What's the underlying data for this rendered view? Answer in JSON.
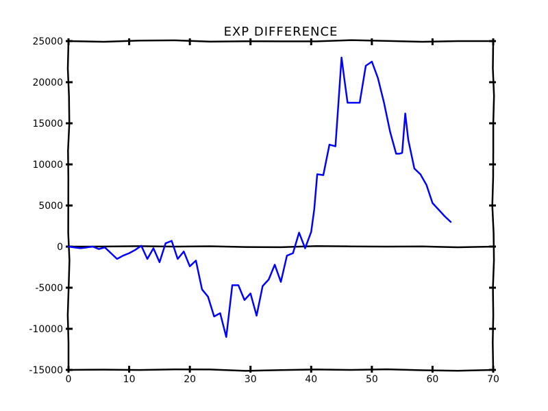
{
  "chart_data": {
    "type": "line",
    "title": "EXP DIFFERENCE",
    "xlabel": "",
    "ylabel": "",
    "xlim": [
      0,
      70
    ],
    "ylim": [
      -15000,
      25000
    ],
    "xticks": [
      0,
      10,
      20,
      30,
      40,
      50,
      60,
      70
    ],
    "yticks": [
      -15000,
      -10000,
      -5000,
      0,
      5000,
      10000,
      15000,
      20000,
      25000
    ],
    "grid": false,
    "zero_line": true,
    "line_color": "#0000ff",
    "series": [
      {
        "x": [
          0,
          1,
          2,
          3,
          4,
          5,
          6,
          7,
          8,
          9,
          10,
          11,
          12,
          13,
          14,
          15,
          16,
          17,
          18,
          19,
          20,
          21,
          22,
          23,
          24,
          25,
          26,
          27,
          28,
          29,
          30,
          31,
          32,
          33,
          34,
          35,
          36,
          37,
          38,
          39,
          40,
          40.5,
          41,
          42,
          43,
          44,
          44.5,
          45,
          45.5,
          46,
          47,
          48,
          49,
          50,
          51,
          52,
          53,
          54,
          54.5,
          55,
          55.5,
          56,
          57,
          58,
          59,
          60,
          61,
          62,
          63
        ],
        "values": [
          0,
          -100,
          -200,
          -100,
          0,
          -300,
          -100,
          -800,
          -1500,
          -1100,
          -800,
          -400,
          100,
          -1500,
          -200,
          -1900,
          400,
          700,
          -1500,
          -600,
          -2400,
          -1700,
          -5200,
          -6100,
          -8500,
          -8100,
          -11000,
          -4700,
          -4700,
          -6500,
          -5700,
          -8400,
          -4800,
          -4000,
          -2200,
          -4300,
          -1100,
          -800,
          1700,
          -200,
          1800,
          4500,
          8800,
          8700,
          12400,
          12200,
          17500,
          23000,
          20200,
          17500,
          17500,
          17500,
          22000,
          22500,
          20500,
          17500,
          14000,
          11300,
          11300,
          11400,
          16200,
          13000,
          9500,
          8800,
          7500,
          5300,
          4500,
          3700,
          3000
        ]
      }
    ]
  }
}
